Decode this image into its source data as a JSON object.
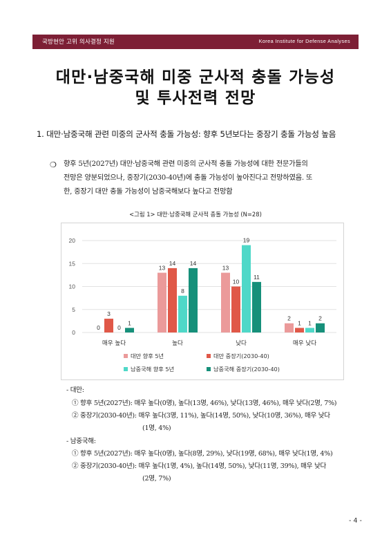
{
  "header": {
    "left_text": "국방현안 고위 의사결정 지원",
    "right_text": "Korea Institute for Defense Analyses",
    "band_color": "#7d1f35"
  },
  "title": {
    "line1": "대만·남중국해 미중 군사적 충돌 가능성",
    "line2": "및 투사전력 전망"
  },
  "section": {
    "heading": "1. 대만·남중국해 관련 미중의 군사적 충돌 가능성: 향후 5년보다는 중장기 충돌 가능성 높음"
  },
  "bullet": {
    "mark": "❍",
    "lines": [
      "향후 5년(2027년) 대만·남중국해 관련 미중의 군사적 충돌 가능성에 대한 전문가들의",
      "전망은 양분되었으나, 중장기(2030-40년)에 충돌 가능성이 높아진다고 전망하였음. 또",
      "한, 중장기 대만 충돌 가능성이 남중국해보다 높다고 전망함"
    ]
  },
  "figure": {
    "caption": "<그림 1> 대만·남중국해 군사적 충돌 가능성 (N=28)"
  },
  "chart_data": {
    "type": "bar",
    "categories": [
      "매우 높다",
      "높다",
      "낮다",
      "매우 낮다"
    ],
    "ylim": [
      0,
      20
    ],
    "yticks": [
      0,
      5,
      10,
      15,
      20
    ],
    "grid": true,
    "legend_position": "bottom",
    "series": [
      {
        "name": "대만 향후 5년",
        "color": "#eb9a9a",
        "values": [
          0,
          13,
          13,
          2
        ]
      },
      {
        "name": "대만 중장기(2030-40)",
        "color": "#e05848",
        "values": [
          3,
          14,
          10,
          1
        ]
      },
      {
        "name": "남중국해 향후 5년",
        "color": "#4fd8c8",
        "values": [
          0,
          8,
          19,
          1
        ]
      },
      {
        "name": "남중국해 중장기(2030-40)",
        "color": "#16907a",
        "values": [
          1,
          14,
          11,
          2
        ]
      }
    ]
  },
  "notes": {
    "taiwan_label": "- 대만:",
    "taiwan_line1": "① 향후 5년(2027년): 매우 높다(0명), 높다(13명, 46%), 낮다(13명, 46%), 매우 낮다(2명, 7%)",
    "taiwan_line2": "② 중장기(2030-40년): 매우 높다(3명, 11%), 높다(14명, 50%), 낮다(10명, 36%), 매우 낮다",
    "taiwan_line2_cont": "(1명, 4%)",
    "scs_label": "- 남중국해:",
    "scs_line1": "① 향후 5년(2027년): 매우 높다(0명), 높다(8명, 29%), 낮다(19명, 68%), 매우 낮다(1명, 4%)",
    "scs_line2": "② 중장기(2030-40년): 매우 높다(1명, 4%), 높다(14명, 50%), 낮다(11명, 39%), 매우 낮다",
    "scs_line2_cont": "(2명, 7%)"
  },
  "page": {
    "number": "- 4 -"
  }
}
